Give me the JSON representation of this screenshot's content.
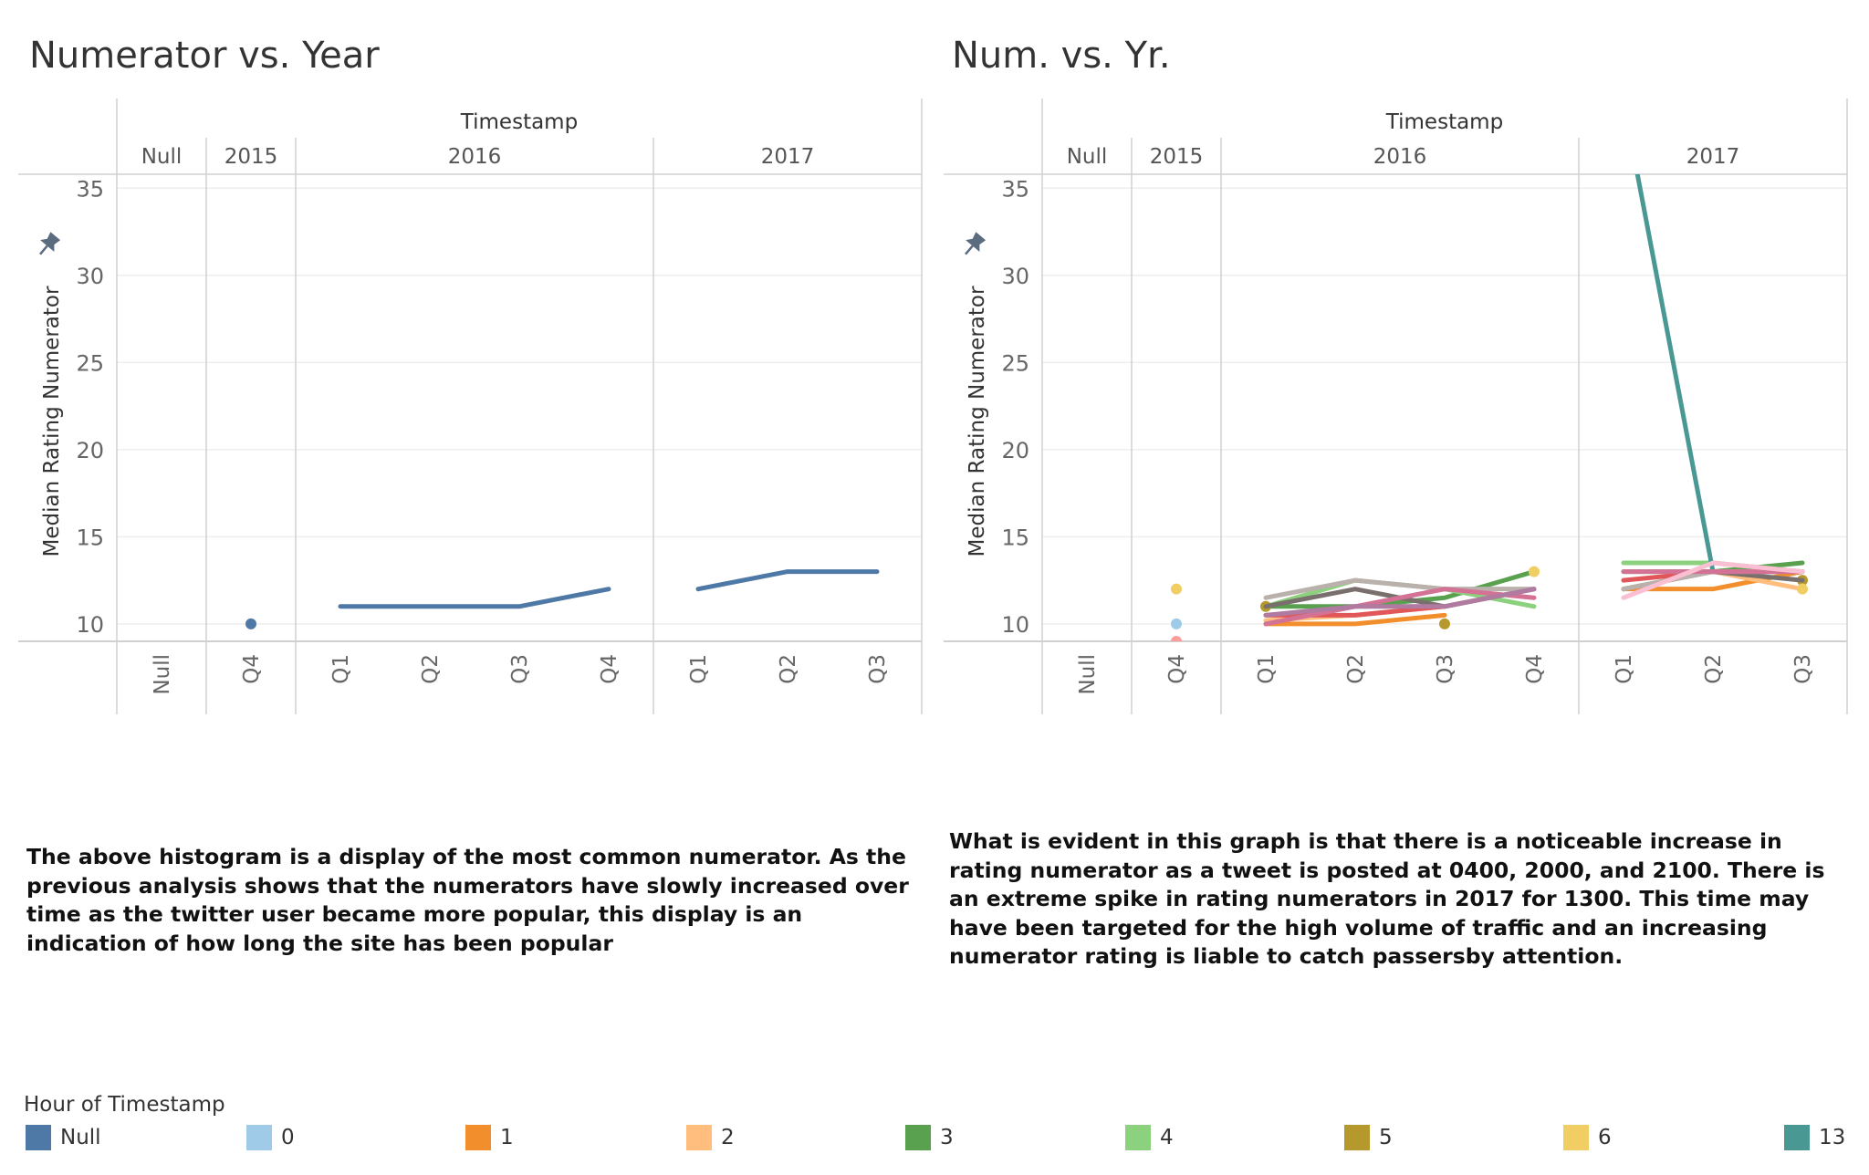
{
  "charts": [
    {
      "title": "Numerator vs. Year"
    },
    {
      "title": "Num. vs. Yr."
    }
  ],
  "chart_data": [
    {
      "type": "line",
      "title": "Numerator vs. Year",
      "column_header": "Timestamp",
      "years": [
        "Null",
        "2015",
        "2016",
        "2017"
      ],
      "quarters": [
        "Null",
        "Q4",
        "Q1",
        "Q2",
        "Q3",
        "Q4",
        "Q1",
        "Q2",
        "Q3"
      ],
      "ylabel": "Median Rating Numerator",
      "ylim": [
        9,
        35.8
      ],
      "yticks": [
        "10",
        "15",
        "20",
        "25",
        "30",
        "35"
      ],
      "series": [
        {
          "color": "#4e79a7",
          "values": [
            null,
            10,
            11,
            11,
            11,
            12,
            12,
            13,
            13
          ]
        }
      ]
    },
    {
      "type": "line",
      "title": "Num. vs. Yr.",
      "column_header": "Timestamp",
      "years": [
        "Null",
        "2015",
        "2016",
        "2017"
      ],
      "quarters": [
        "Null",
        "Q4",
        "Q1",
        "Q2",
        "Q3",
        "Q4",
        "Q1",
        "Q2",
        "Q3"
      ],
      "ylabel": "Median Rating Numerator",
      "ylim": [
        9,
        35.8
      ],
      "yticks": [
        "10",
        "15",
        "20",
        "25",
        "30",
        "35"
      ],
      "series": [
        {
          "name": "0",
          "color": "#a0cbe8",
          "values": [
            null,
            10,
            10,
            11,
            11,
            12,
            12,
            13,
            13
          ]
        },
        {
          "name": "1",
          "color": "#f28e2b",
          "values": [
            null,
            null,
            10,
            10,
            10.5,
            null,
            12,
            12,
            13
          ]
        },
        {
          "name": "2",
          "color": "#ffbe7d",
          "values": [
            null,
            null,
            10.2,
            10.5,
            11,
            null,
            12,
            13,
            12
          ]
        },
        {
          "name": "3",
          "color": "#59a14f",
          "values": [
            null,
            null,
            11,
            11,
            11.5,
            13,
            13,
            13,
            13.5
          ]
        },
        {
          "name": "4",
          "color": "#8cd17d",
          "values": [
            null,
            null,
            11,
            12.5,
            12,
            11,
            13.5,
            13.5,
            13
          ]
        },
        {
          "name": "5",
          "color": "#b6992d",
          "values": [
            null,
            null,
            11,
            null,
            10,
            null,
            null,
            null,
            12.5
          ]
        },
        {
          "name": "6",
          "color": "#f1ce63",
          "values": [
            null,
            12,
            null,
            null,
            null,
            13,
            null,
            null,
            12
          ]
        },
        {
          "name": "13",
          "color": "#499894",
          "values": [
            null,
            null,
            null,
            null,
            null,
            null,
            40,
            13,
            13
          ]
        },
        {
          "color": "#e15759",
          "values": [
            null,
            null,
            10.5,
            10.5,
            11,
            12,
            12.5,
            13,
            13
          ]
        },
        {
          "color": "#ff9d9a",
          "values": [
            null,
            9,
            null,
            null,
            null,
            null,
            null,
            null,
            null
          ]
        },
        {
          "color": "#79706e",
          "values": [
            null,
            null,
            11,
            12,
            11,
            12,
            12,
            13,
            12.5
          ]
        },
        {
          "color": "#bab0ac",
          "values": [
            null,
            null,
            11.5,
            12.5,
            12,
            12,
            12,
            13,
            13
          ]
        },
        {
          "color": "#d37295",
          "values": [
            null,
            null,
            10,
            11,
            12,
            11.5,
            13,
            13,
            13
          ]
        },
        {
          "color": "#fabfd2",
          "values": [
            null,
            null,
            null,
            null,
            null,
            null,
            11.5,
            13.5,
            13
          ]
        },
        {
          "color": "#b07aa1",
          "values": [
            null,
            null,
            10.5,
            11,
            11,
            12,
            null,
            null,
            null
          ]
        }
      ]
    }
  ],
  "descriptions": {
    "left": "The above histogram is a display of the most common numerator. As the previous analysis shows that the numerators have slowly increased over time as the twitter user became more popular, this display is an indication of how long the site has been popular",
    "right": "What is evident in this graph is that there is a noticeable increase in rating numerator as a tweet is posted at 0400, 2000, and 2100. There is an extreme spike in rating numerators in 2017 for 1300. This time may have been targeted for the high volume of traffic and an increasing numerator rating is liable to catch passersby attention."
  },
  "legend": {
    "title": "Hour of Timestamp",
    "items": [
      {
        "label": "Null",
        "color": "#4e79a7"
      },
      {
        "label": "0",
        "color": "#a0cbe8"
      },
      {
        "label": "1",
        "color": "#f28e2b"
      },
      {
        "label": "2",
        "color": "#ffbe7d"
      },
      {
        "label": "3",
        "color": "#59a14f"
      },
      {
        "label": "4",
        "color": "#8cd17d"
      },
      {
        "label": "5",
        "color": "#b6992d"
      },
      {
        "label": "6",
        "color": "#f1ce63"
      },
      {
        "label": "13",
        "color": "#499894"
      }
    ]
  },
  "icons": {
    "pin": "pin-icon"
  }
}
